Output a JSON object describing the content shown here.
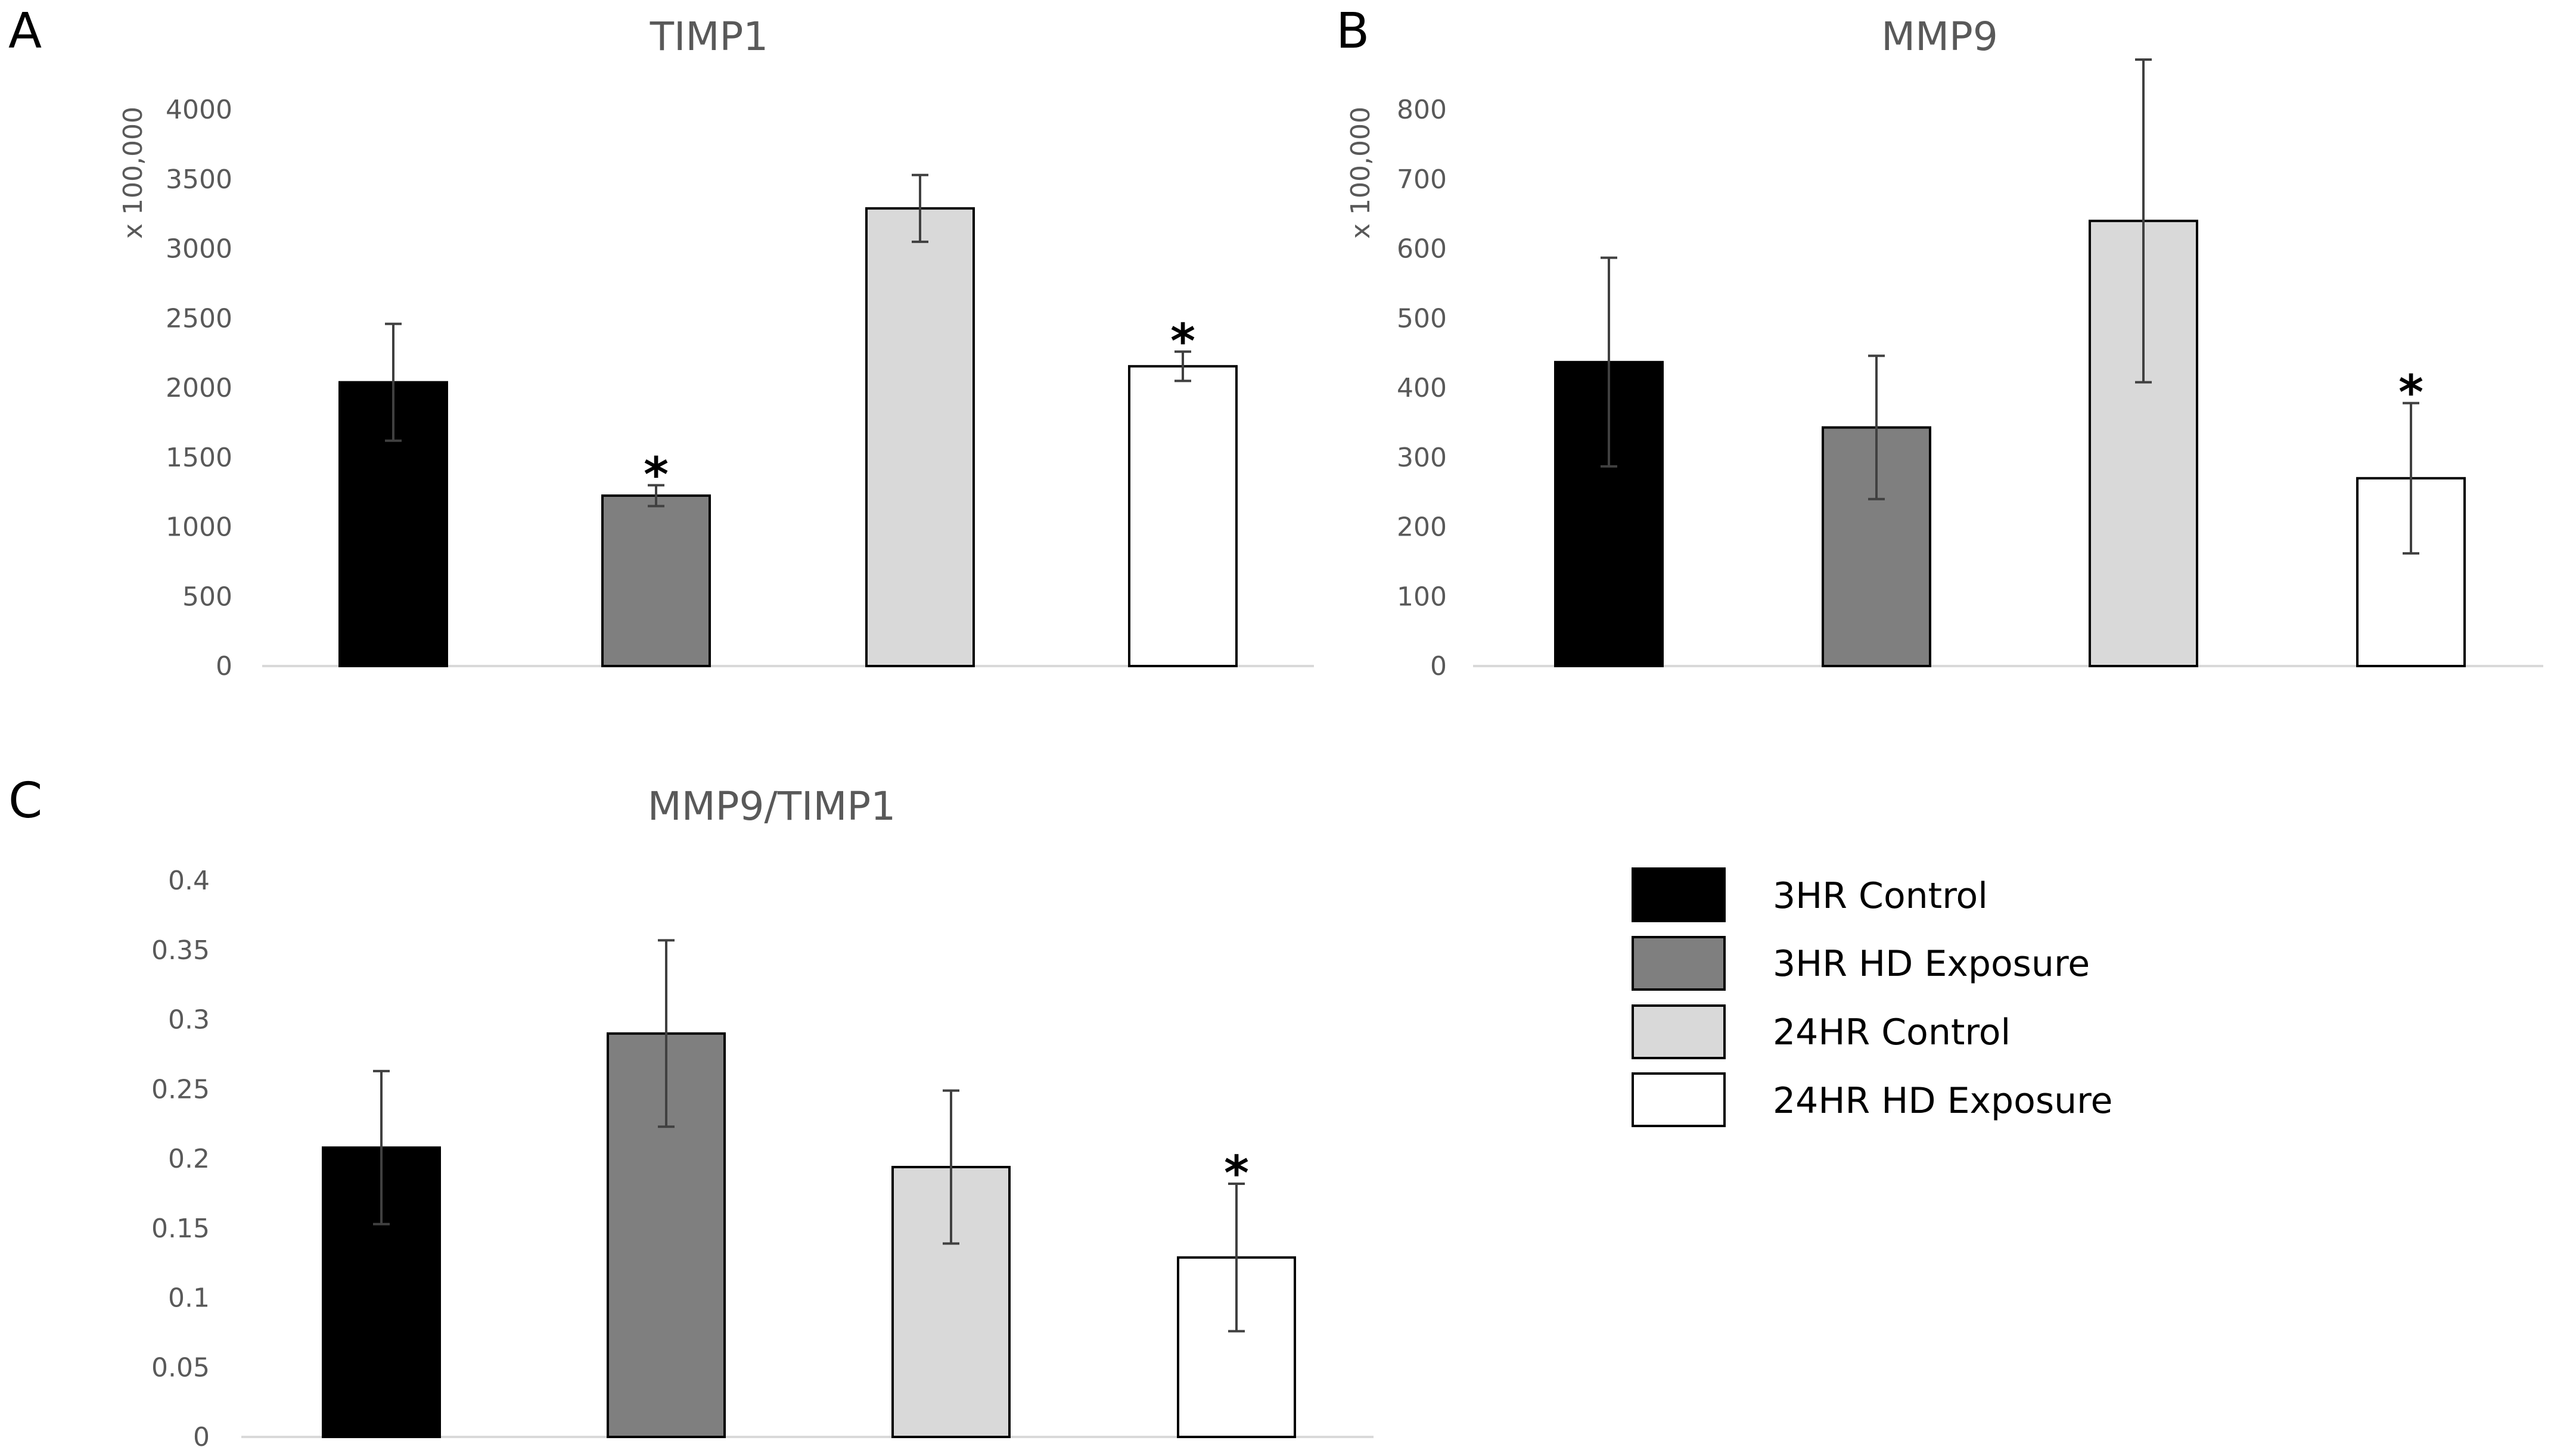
{
  "colors": {
    "3HR Control": "#000000",
    "3HR HD Exposure": "#7f7f7f",
    "24HR Control": "#d9d9d9",
    "24HR HD Exposure": "#ffffff",
    "axis": "#d9d9d9",
    "error": "#404040"
  },
  "legend": [
    "3HR Control",
    "3HR HD Exposure",
    "24HR Control",
    "24HR HD Exposure"
  ],
  "chart_data": [
    {
      "panel": "A",
      "type": "bar",
      "title": "TIMP1",
      "ylabel": "x 100,000",
      "ylim": [
        0,
        4000
      ],
      "yticks": [
        0,
        500,
        1000,
        1500,
        2000,
        2500,
        3000,
        3500,
        4000
      ],
      "series": [
        {
          "name": "3HR Control",
          "value": 2040,
          "error": 420,
          "significant": false
        },
        {
          "name": "3HR HD Exposure",
          "value": 1225,
          "error": 75,
          "significant": true
        },
        {
          "name": "24HR Control",
          "value": 3290,
          "error": 240,
          "significant": false
        },
        {
          "name": "24HR HD Exposure",
          "value": 2155,
          "error": 105,
          "significant": true
        }
      ],
      "annotation": "*"
    },
    {
      "panel": "B",
      "type": "bar",
      "title": "MMP9",
      "ylabel": "x 100,000",
      "ylim": [
        0,
        800
      ],
      "yticks": [
        0,
        100,
        200,
        300,
        400,
        500,
        600,
        700,
        800
      ],
      "series": [
        {
          "name": "3HR Control",
          "value": 437,
          "error": 150,
          "significant": false
        },
        {
          "name": "3HR HD Exposure",
          "value": 343,
          "error": 103,
          "significant": false
        },
        {
          "name": "24HR Control",
          "value": 640,
          "error": 232,
          "significant": false
        },
        {
          "name": "24HR HD Exposure",
          "value": 270,
          "error": 108,
          "significant": true
        }
      ],
      "annotation": "*"
    },
    {
      "panel": "C",
      "type": "bar",
      "title": "MMP9/TIMP1",
      "ylabel": "",
      "ylim": [
        0,
        0.4
      ],
      "yticks": [
        "0",
        "0.05",
        "0.1",
        "0.15",
        "0.2",
        "0.25",
        "0.3",
        "0.35",
        "0.4"
      ],
      "series": [
        {
          "name": "3HR Control",
          "value": 0.208,
          "error": 0.055,
          "significant": false
        },
        {
          "name": "3HR HD Exposure",
          "value": 0.29,
          "error": 0.067,
          "significant": false
        },
        {
          "name": "24HR Control",
          "value": 0.194,
          "error": 0.055,
          "significant": false
        },
        {
          "name": "24HR HD Exposure",
          "value": 0.129,
          "error": 0.053,
          "significant": true
        }
      ],
      "annotation": "*"
    }
  ]
}
